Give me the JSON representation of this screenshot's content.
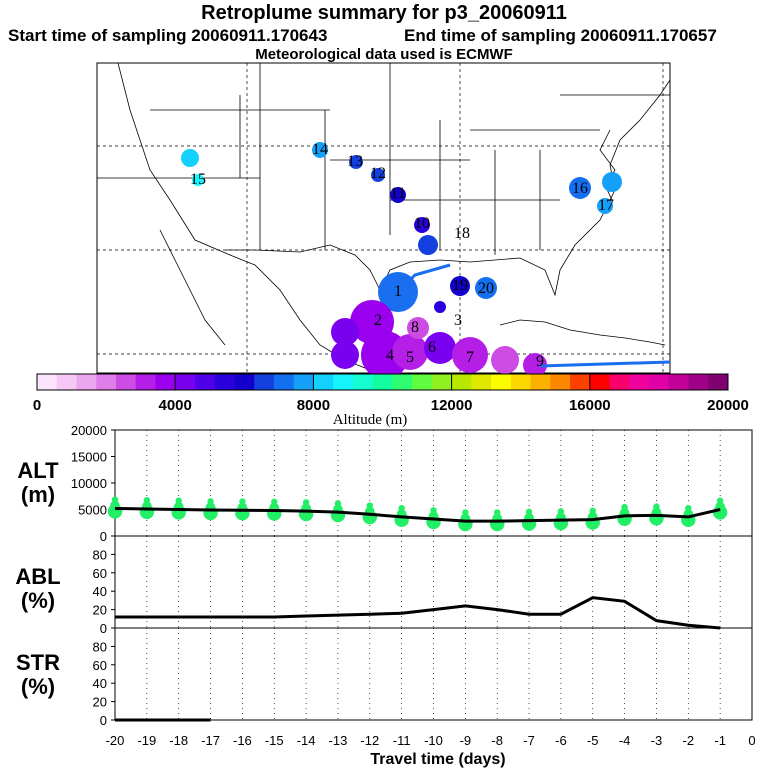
{
  "header": {
    "title": "Retroplume summary for p3_20060911",
    "start_text": "Start time of sampling 20060911.170643",
    "end_text": "End time of sampling 20060911.170657",
    "met_text": "Meteorological data used is ECMWF"
  },
  "colorbar": {
    "tick_labels": [
      "0",
      "4000",
      "8000",
      "12000",
      "16000",
      "20000"
    ],
    "label": "Altitude (m)",
    "colors": [
      "#fce4fc",
      "#f6c8f6",
      "#eca6ef",
      "#df7ee8",
      "#cc4ce4",
      "#b41ee6",
      "#9a00ee",
      "#7a00f0",
      "#5000e8",
      "#2c00dc",
      "#1400cc",
      "#1440e0",
      "#1470f0",
      "#14a0f8",
      "#14d0fc",
      "#14f4fc",
      "#14fcd0",
      "#14fca0",
      "#30fc70",
      "#60fc40",
      "#90f020",
      "#b8e800",
      "#e0e800",
      "#fcfc00",
      "#fcd800",
      "#fcb000",
      "#fc8800",
      "#fc4000",
      "#fc0000",
      "#f8006c",
      "#f0009c",
      "#e000a8",
      "#c00098",
      "#a00088",
      "#800070"
    ]
  },
  "map_labels": [
    {
      "text": "1",
      "color": "#000"
    },
    {
      "text": "2",
      "color": "#000"
    },
    {
      "text": "3",
      "color": "#000"
    },
    {
      "text": "4",
      "color": "#000"
    },
    {
      "text": "5",
      "color": "#000"
    },
    {
      "text": "6",
      "color": "#000"
    },
    {
      "text": "7",
      "color": "#000"
    },
    {
      "text": "8",
      "color": "#000"
    },
    {
      "text": "9",
      "color": "#000"
    },
    {
      "text": "10",
      "color": "#000"
    },
    {
      "text": "11",
      "color": "#000"
    },
    {
      "text": "12",
      "color": "#000"
    },
    {
      "text": "13",
      "color": "#000"
    },
    {
      "text": "14",
      "color": "#000"
    },
    {
      "text": "15",
      "color": "#000"
    },
    {
      "text": "16",
      "color": "#000"
    },
    {
      "text": "17",
      "color": "#000"
    },
    {
      "text": "18",
      "color": "#000"
    },
    {
      "text": "19",
      "color": "#000"
    },
    {
      "text": "20",
      "color": "#000"
    }
  ],
  "chart_data": [
    {
      "type": "scatter",
      "name": "ALT",
      "ylabel": "ALT (m)",
      "ylim": [
        0,
        20000
      ],
      "yticks": [
        "20000",
        "15000",
        "10000",
        "5000",
        "0"
      ],
      "line_x": [
        -20,
        -19,
        -18,
        -17,
        -16,
        -15,
        -14,
        -13,
        -12,
        -11,
        -10,
        -9,
        -8,
        -7,
        -6,
        -5,
        -4,
        -3,
        -2,
        -1
      ],
      "line_y": [
        5200,
        5100,
        5000,
        4900,
        4850,
        4800,
        4700,
        4500,
        4100,
        3600,
        3200,
        2800,
        2800,
        2900,
        3000,
        3100,
        3800,
        3900,
        3600,
        5000
      ],
      "points_color": "#22ee66"
    },
    {
      "type": "line",
      "name": "ABL",
      "ylabel": "ABL (%)",
      "ylim": [
        0,
        100
      ],
      "yticks": [
        "80",
        "60",
        "40",
        "20",
        "0"
      ],
      "x": [
        -20,
        -19,
        -18,
        -17,
        -16,
        -15,
        -14,
        -13,
        -12,
        -11,
        -10,
        -9,
        -8,
        -7,
        -6,
        -5,
        -4,
        -3,
        -2,
        -1
      ],
      "y": [
        12,
        12,
        12,
        12,
        12,
        12,
        13,
        14,
        15,
        16,
        20,
        24,
        20,
        15,
        15,
        33,
        29,
        8,
        3,
        0
      ]
    },
    {
      "type": "line",
      "name": "STR",
      "ylabel": "STR (%)",
      "ylim": [
        0,
        100
      ],
      "yticks": [
        "80",
        "60",
        "40",
        "20",
        "0"
      ],
      "x": [
        -20,
        -19,
        -18,
        -17
      ],
      "y": [
        0,
        0,
        0,
        0
      ]
    }
  ],
  "xaxis": {
    "tick_labels": [
      "-20",
      "-19",
      "-18",
      "-17",
      "-16",
      "-15",
      "-14",
      "-13",
      "-12",
      "-11",
      "-10",
      "-9",
      "-8",
      "-7",
      "-6",
      "-5",
      "-4",
      "-3",
      "-2",
      "-1",
      "0"
    ],
    "label": "Travel time (days)"
  }
}
